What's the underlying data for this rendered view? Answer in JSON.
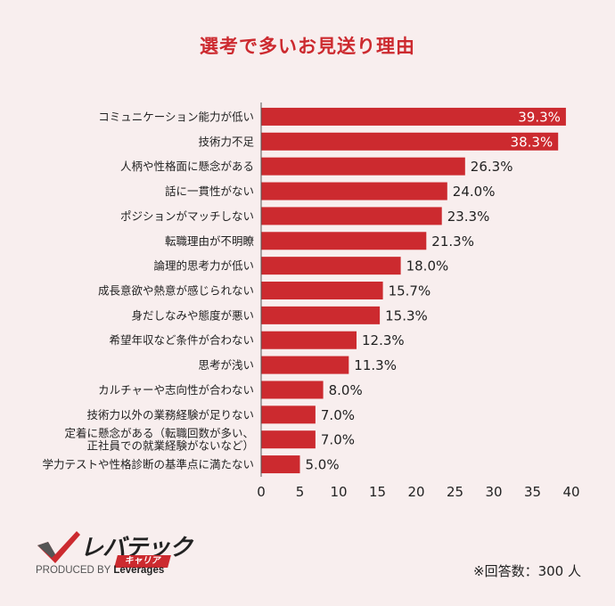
{
  "title": "選考で多いお見送り理由",
  "chart_data": {
    "type": "bar",
    "orientation": "horizontal",
    "title": "選考で多いお見送り理由",
    "categories": [
      "コミュニケーション能力が低い",
      "技術力不足",
      "人柄や性格面に懸念がある",
      "話に一貫性がない",
      "ポジションがマッチしない",
      "転職理由が不明瞭",
      "論理的思考力が低い",
      "成長意欲や熱意が感じられない",
      "身だしなみや態度が悪い",
      "希望年収など条件が合わない",
      "思考が浅い",
      "カルチャーや志向性が合わない",
      "技術力以外の業務経験が足りない",
      "定着に懸念がある（転職回数が多い、\n正社員での就業経験がないなど）",
      "学力テストや性格診断の基準点に満たない"
    ],
    "values": [
      39.3,
      38.3,
      26.3,
      24.0,
      23.3,
      21.3,
      18.0,
      15.7,
      15.3,
      12.3,
      11.3,
      8.0,
      7.0,
      7.0,
      5.0
    ],
    "value_labels": [
      "39.3%",
      "38.3%",
      "26.3%",
      "24.0%",
      "23.3%",
      "21.3%",
      "18.0%",
      "15.7%",
      "15.3%",
      "12.3%",
      "11.3%",
      "8.0%",
      "7.0%",
      "7.0%",
      "5.0%"
    ],
    "xlim": [
      0,
      40
    ],
    "xticks": [
      "0",
      "5",
      "10",
      "15",
      "20",
      "25",
      "30",
      "35",
      "40"
    ],
    "xtick_values": [
      0,
      5,
      10,
      15,
      20,
      25,
      30,
      35,
      40
    ],
    "xlabel": "",
    "ylabel": "",
    "bar_color": "#cc2a2f",
    "inside_label_threshold": 30
  },
  "logo": {
    "word": "レバテック",
    "sub": "キャリア",
    "produced_prefix": "PRODUCED BY",
    "produced_brand": "Leverages"
  },
  "note": "※回答数：300 人",
  "colors": {
    "accent": "#cc2a2f",
    "background": "#f8eeee"
  }
}
